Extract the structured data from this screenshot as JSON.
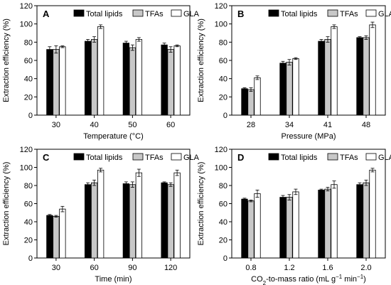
{
  "chart_data": [
    {
      "type": "bar",
      "panel": "A",
      "xlabel": "Temperature (°C)",
      "ylabel": "Extraction efficiency (%)",
      "ylim": [
        0,
        120
      ],
      "yticks": [
        0,
        20,
        40,
        60,
        80,
        100,
        120
      ],
      "categories": [
        "30",
        "40",
        "50",
        "60"
      ],
      "legend_position": "top-right",
      "series": [
        {
          "name": "Total lipids",
          "values": [
            72,
            81,
            79,
            77
          ],
          "errors": [
            3,
            2,
            2,
            2
          ]
        },
        {
          "name": "TFAs",
          "values": [
            72,
            83,
            74,
            72
          ],
          "errors": [
            4,
            3,
            3,
            3
          ]
        },
        {
          "name": "GLA",
          "values": [
            75,
            97,
            83,
            76
          ],
          "errors": [
            1,
            2,
            2,
            1
          ]
        }
      ]
    },
    {
      "type": "bar",
      "panel": "B",
      "xlabel": "Pressure (MPa)",
      "ylabel": "Extraction efficiency (%)",
      "ylim": [
        0,
        120
      ],
      "yticks": [
        0,
        20,
        40,
        60,
        80,
        100,
        120
      ],
      "categories": [
        "28",
        "34",
        "41",
        "48"
      ],
      "legend_position": "top-right",
      "series": [
        {
          "name": "Total lipids",
          "values": [
            29,
            57,
            81,
            85
          ],
          "errors": [
            1,
            2,
            2,
            1
          ]
        },
        {
          "name": "TFAs",
          "values": [
            28,
            58,
            83,
            85
          ],
          "errors": [
            2,
            3,
            3,
            2
          ]
        },
        {
          "name": "GLA",
          "values": [
            41,
            62,
            97,
            99
          ],
          "errors": [
            2,
            1,
            2,
            3
          ]
        }
      ]
    },
    {
      "type": "bar",
      "panel": "C",
      "xlabel": "Time (min)",
      "ylabel": "Extraction efficiency (%)",
      "ylim": [
        0,
        120
      ],
      "yticks": [
        0,
        20,
        40,
        60,
        80,
        100,
        120
      ],
      "categories": [
        "30",
        "60",
        "90",
        "120"
      ],
      "legend_position": "top-right",
      "series": [
        {
          "name": "Total lipids",
          "values": [
            47,
            81,
            82,
            83
          ],
          "errors": [
            1,
            2,
            2,
            1
          ]
        },
        {
          "name": "TFAs",
          "values": [
            46,
            83,
            81,
            81
          ],
          "errors": [
            1,
            3,
            3,
            2
          ]
        },
        {
          "name": "GLA",
          "values": [
            54,
            97,
            94,
            94
          ],
          "errors": [
            3,
            2,
            4,
            3
          ]
        }
      ]
    },
    {
      "type": "bar",
      "panel": "D",
      "xlabel_parts": [
        "CO",
        "2",
        "-to-mass ratio (mL g",
        "−1",
        " min",
        "−1",
        ")"
      ],
      "ylabel": "Extraction efficiency (%)",
      "ylim": [
        0,
        120
      ],
      "yticks": [
        0,
        20,
        40,
        60,
        80,
        100,
        120
      ],
      "categories": [
        "0.8",
        "1.2",
        "1.6",
        "2.0"
      ],
      "legend_position": "top-right",
      "series": [
        {
          "name": "Total lipids",
          "values": [
            65,
            67,
            75,
            81
          ],
          "errors": [
            1,
            2,
            1,
            2
          ]
        },
        {
          "name": "TFAs",
          "values": [
            63,
            67,
            76,
            83
          ],
          "errors": [
            1,
            3,
            2,
            3
          ]
        },
        {
          "name": "GLA",
          "values": [
            71,
            73,
            81,
            97
          ],
          "errors": [
            4,
            3,
            4,
            2
          ]
        }
      ]
    }
  ],
  "series_colors": {
    "Total lipids": "#000000",
    "TFAs": "#c8c8c8",
    "GLA": "#ffffff"
  }
}
